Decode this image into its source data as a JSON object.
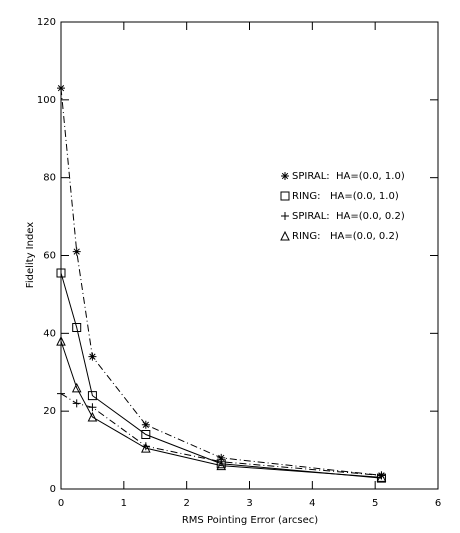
{
  "chart_data": {
    "type": "line",
    "xlabel": "RMS Pointing Error (arcsec)",
    "ylabel": "Fidelity Index",
    "x": [
      0,
      0.25,
      0.5,
      1.35,
      2.55,
      5.1
    ],
    "series": [
      {
        "name": "SPIRAL:  HA=(0.0, 1.0)",
        "color": "#000000",
        "marker": "asterisk",
        "line_style": "dashdot",
        "values": [
          103,
          61,
          34,
          16.5,
          8,
          3.5
        ]
      },
      {
        "name": "RING:   HA=(0.0, 1.0)",
        "color": "#000000",
        "marker": "square",
        "line_style": "solid",
        "values": [
          55.5,
          41.5,
          24,
          14,
          6.5,
          2.8
        ]
      },
      {
        "name": "SPIRAL:  HA=(0.0, 0.2)",
        "color": "#000000",
        "marker": "plus",
        "line_style": "dashdot",
        "values": [
          24.5,
          22,
          21,
          11,
          7,
          3.5
        ]
      },
      {
        "name": "RING:   HA=(0.0, 0.2)",
        "color": "#000000",
        "marker": "triangle",
        "line_style": "solid",
        "values": [
          38,
          26,
          18.5,
          10.5,
          6,
          3
        ]
      }
    ],
    "xlim": [
      0,
      6
    ],
    "xticks": [
      0,
      1,
      2,
      3,
      4,
      5,
      6
    ],
    "ylim": [
      0,
      120
    ],
    "yticks": [
      0,
      20,
      40,
      60,
      80,
      100,
      120
    ]
  }
}
